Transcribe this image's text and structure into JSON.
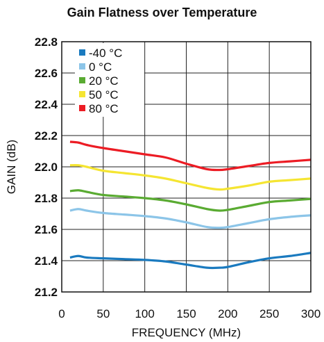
{
  "chart_data": {
    "type": "line",
    "title": "Gain Flatness over Temperature",
    "xlabel": "FREQUENCY (MHz)",
    "ylabel": "GAIN (dB)",
    "xlim": [
      0,
      300
    ],
    "ylim": [
      21.2,
      22.8
    ],
    "xticks": [
      "0",
      "50",
      "100",
      "150",
      "200",
      "250",
      "300"
    ],
    "yticks": [
      "21.2",
      "21.4",
      "21.6",
      "21.8",
      "22.0",
      "22.2",
      "22.4",
      "22.6",
      "22.8"
    ],
    "grid": true,
    "legend_position": "top-left",
    "x": [
      10,
      20,
      30,
      50,
      75,
      100,
      125,
      150,
      175,
      190,
      200,
      225,
      250,
      275,
      300
    ],
    "series": [
      {
        "name": "-40 °C",
        "color": "#1a7abf",
        "values": [
          21.42,
          21.43,
          21.42,
          21.415,
          21.41,
          21.405,
          21.395,
          21.375,
          21.355,
          21.355,
          21.36,
          21.39,
          21.415,
          21.43,
          21.45
        ]
      },
      {
        "name": "0 °C",
        "color": "#8cc5e8",
        "values": [
          21.72,
          21.73,
          21.72,
          21.705,
          21.695,
          21.685,
          21.67,
          21.645,
          21.615,
          21.61,
          21.615,
          21.64,
          21.665,
          21.68,
          21.69
        ]
      },
      {
        "name": "20 °C",
        "color": "#5aab32",
        "values": [
          21.845,
          21.85,
          21.84,
          21.82,
          21.81,
          21.8,
          21.785,
          21.76,
          21.73,
          21.72,
          21.725,
          21.75,
          21.775,
          21.785,
          21.795
        ]
      },
      {
        "name": "50 °C",
        "color": "#f5e532",
        "values": [
          22.01,
          22.01,
          22.0,
          21.975,
          21.96,
          21.945,
          21.925,
          21.895,
          21.865,
          21.855,
          21.86,
          21.88,
          21.905,
          21.915,
          21.925
        ]
      },
      {
        "name": "80 °C",
        "color": "#ec1c24",
        "values": [
          22.16,
          22.155,
          22.14,
          22.12,
          22.1,
          22.08,
          22.06,
          22.02,
          21.985,
          21.98,
          21.985,
          22.005,
          22.025,
          22.035,
          22.045
        ]
      }
    ]
  }
}
